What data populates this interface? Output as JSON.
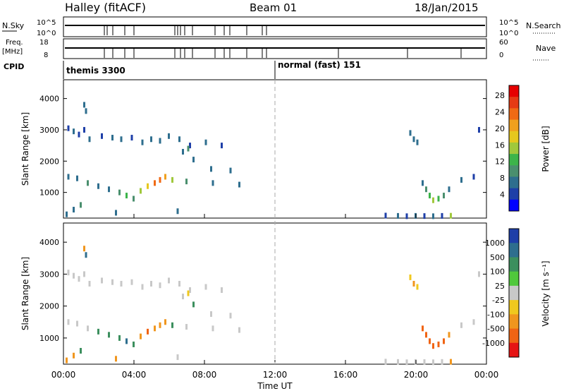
{
  "header": {
    "station": "Halley (fitACF)",
    "beam": "Beam 01",
    "date": "18/Jan/2015"
  },
  "summary_panels": {
    "nsky_label": "N.Sky",
    "nsky_ticks": [
      "10^5",
      "10^0"
    ],
    "nsearch_label": "N.Search",
    "nsearch_ticks": [
      "10^5",
      "10^0"
    ],
    "freq_label": "Freq.",
    "freq_unit": "[MHz]",
    "freq_ticks": [
      "18",
      "8"
    ],
    "nave_label": "Nave",
    "nave_ticks": [
      "60",
      "0"
    ],
    "cpid_label": "CPID",
    "cpid_segments": [
      {
        "name": "themis 3300",
        "start_hour": 0,
        "end_hour": 12
      },
      {
        "name": "normal (fast) 151",
        "start_hour": 12,
        "end_hour": 24
      }
    ]
  },
  "chart_data": [
    {
      "type": "scatter",
      "title": "",
      "xlabel": "Time UT",
      "ylabel": "Slant Range [km]",
      "x_ticks": [
        "00:00",
        "04:00",
        "08:00",
        "12:00",
        "16:00",
        "20:00",
        "00:00"
      ],
      "x_range_hours": [
        0,
        24
      ],
      "y_ticks": [
        1000,
        2000,
        3000,
        4000
      ],
      "ylim": [
        180,
        4600
      ],
      "colorbar": {
        "label": "Power [dB]",
        "ticks": [
          "4",
          "8",
          "12",
          "16",
          "20",
          "24",
          "28"
        ],
        "colors": [
          "#0000ff",
          "#1e3fa8",
          "#2e6e8e",
          "#4a8f6e",
          "#3cb44a",
          "#a0c83c",
          "#e6c81e",
          "#f0a01e",
          "#f06a14",
          "#e63a14",
          "#e60000"
        ]
      },
      "series": [
        {
          "values": [
            [
              0.3,
              3050,
              5
            ],
            [
              0.6,
              2950,
              6
            ],
            [
              0.9,
              2850,
              5
            ],
            [
              1.2,
              3000,
              4
            ],
            [
              1.5,
              2700,
              6
            ],
            [
              2.2,
              2800,
              5
            ],
            [
              2.8,
              2750,
              7
            ],
            [
              3.3,
              2700,
              6
            ],
            [
              3.9,
              2750,
              5
            ],
            [
              4.5,
              2600,
              6
            ],
            [
              5.0,
              2700,
              7
            ],
            [
              5.5,
              2650,
              6
            ],
            [
              6.0,
              2800,
              8
            ],
            [
              6.6,
              2700,
              6
            ],
            [
              7.2,
              2500,
              5
            ],
            [
              8.1,
              2600,
              6
            ],
            [
              9.0,
              2500,
              5
            ]
          ]
        },
        {
          "values": [
            [
              0.3,
              1500,
              6
            ],
            [
              0.8,
              1450,
              8
            ],
            [
              1.4,
              1300,
              9
            ],
            [
              2.0,
              1200,
              7
            ],
            [
              2.6,
              1100,
              8
            ],
            [
              3.2,
              1000,
              10
            ],
            [
              3.6,
              900,
              12
            ],
            [
              4.0,
              800,
              11
            ],
            [
              4.4,
              1050,
              14
            ],
            [
              4.8,
              1200,
              18
            ],
            [
              5.2,
              1300,
              22
            ],
            [
              5.5,
              1400,
              24
            ],
            [
              5.8,
              1500,
              20
            ],
            [
              6.2,
              1400,
              14
            ],
            [
              7.0,
              1350,
              9
            ],
            [
              8.5,
              1300,
              7
            ],
            [
              10.0,
              1250,
              6
            ]
          ]
        },
        {
          "values": [
            [
              1.2,
              3800,
              6
            ],
            [
              1.3,
              3600,
              7
            ],
            [
              6.8,
              2300,
              8
            ],
            [
              7.1,
              2400,
              10
            ],
            [
              7.4,
              2050,
              7
            ],
            [
              8.4,
              1750,
              6
            ],
            [
              9.5,
              1700,
              6
            ]
          ]
        },
        {
          "values": [
            [
              19.7,
              2900,
              6
            ],
            [
              19.9,
              2700,
              7
            ],
            [
              20.1,
              2600,
              6
            ],
            [
              20.4,
              1300,
              7
            ],
            [
              20.6,
              1100,
              10
            ],
            [
              20.8,
              900,
              13
            ],
            [
              21.0,
              750,
              14
            ],
            [
              21.3,
              800,
              12
            ],
            [
              21.6,
              900,
              9
            ],
            [
              21.9,
              1100,
              7
            ],
            [
              22.6,
              1400,
              6
            ],
            [
              23.3,
              1500,
              5
            ],
            [
              23.6,
              3000,
              5
            ]
          ]
        },
        {
          "values": [
            [
              0.2,
              300,
              6
            ],
            [
              0.6,
              450,
              7
            ],
            [
              1.0,
              600,
              9
            ],
            [
              3.0,
              350,
              6
            ],
            [
              6.5,
              400,
              8
            ],
            [
              18.3,
              260,
              5
            ],
            [
              19.0,
              250,
              6
            ],
            [
              19.5,
              240,
              5
            ],
            [
              20.0,
              250,
              6
            ],
            [
              20.5,
              245,
              5
            ],
            [
              21.0,
              240,
              6
            ],
            [
              21.5,
              250,
              5
            ],
            [
              22.0,
              255,
              16
            ]
          ]
        }
      ]
    },
    {
      "type": "scatter",
      "title": "",
      "xlabel": "Time UT",
      "ylabel": "Slant Range [km]",
      "x_ticks": [
        "00:00",
        "04:00",
        "08:00",
        "12:00",
        "16:00",
        "20:00",
        "00:00"
      ],
      "x_range_hours": [
        0,
        24
      ],
      "y_ticks": [
        1000,
        2000,
        3000,
        4000
      ],
      "ylim": [
        180,
        4600
      ],
      "colorbar": {
        "label": "Velocity [m s⁻¹]",
        "ticks": [
          "1000",
          "500",
          "100",
          "25",
          "-25",
          "-100",
          "-500",
          "-1000"
        ],
        "colors": [
          "#1e3fa8",
          "#2e6e8e",
          "#3c8f5e",
          "#50c83c",
          "#c8c8c8",
          "#f0c81e",
          "#f0961e",
          "#f06414",
          "#e61414"
        ]
      },
      "series": [
        {
          "values": [
            [
              0.3,
              3050,
              10
            ],
            [
              0.6,
              2950,
              0
            ],
            [
              0.9,
              2850,
              -10
            ],
            [
              1.2,
              3000,
              5
            ],
            [
              1.5,
              2700,
              0
            ],
            [
              2.2,
              2800,
              -5
            ],
            [
              2.8,
              2750,
              0
            ],
            [
              3.3,
              2700,
              10
            ],
            [
              3.9,
              2750,
              0
            ],
            [
              4.5,
              2600,
              5
            ],
            [
              5.0,
              2700,
              0
            ],
            [
              5.5,
              2650,
              -5
            ],
            [
              6.0,
              2800,
              0
            ],
            [
              6.6,
              2700,
              10
            ],
            [
              7.2,
              2500,
              0
            ],
            [
              8.1,
              2600,
              0
            ],
            [
              9.0,
              2500,
              5
            ]
          ]
        },
        {
          "values": [
            [
              0.3,
              1500,
              0
            ],
            [
              0.8,
              1450,
              5
            ],
            [
              1.4,
              1300,
              -10
            ],
            [
              2.0,
              1200,
              150
            ],
            [
              2.6,
              1100,
              200
            ],
            [
              3.2,
              1000,
              150
            ],
            [
              3.6,
              900,
              300
            ],
            [
              4.0,
              800,
              150
            ],
            [
              4.4,
              1050,
              -300
            ],
            [
              4.8,
              1200,
              -400
            ],
            [
              5.2,
              1300,
              -300
            ],
            [
              5.5,
              1400,
              -200
            ],
            [
              5.8,
              1500,
              -150
            ],
            [
              6.2,
              1400,
              80
            ],
            [
              7.0,
              1350,
              0
            ],
            [
              8.5,
              1300,
              0
            ],
            [
              10.0,
              1250,
              0
            ]
          ]
        },
        {
          "values": [
            [
              1.2,
              3800,
              -200
            ],
            [
              1.3,
              3600,
              300
            ],
            [
              6.8,
              2300,
              0
            ],
            [
              7.1,
              2400,
              -50
            ],
            [
              7.4,
              2050,
              60
            ],
            [
              8.4,
              1750,
              0
            ],
            [
              9.5,
              1700,
              0
            ]
          ]
        },
        {
          "values": [
            [
              19.7,
              2900,
              -50
            ],
            [
              19.9,
              2700,
              -80
            ],
            [
              20.1,
              2600,
              -40
            ],
            [
              20.4,
              1300,
              -400
            ],
            [
              20.6,
              1100,
              -500
            ],
            [
              20.8,
              900,
              -450
            ],
            [
              21.0,
              750,
              -500
            ],
            [
              21.3,
              800,
              -400
            ],
            [
              21.6,
              900,
              -450
            ],
            [
              21.9,
              1100,
              -300
            ],
            [
              22.6,
              1400,
              0
            ],
            [
              23.3,
              1500,
              0
            ],
            [
              23.6,
              3000,
              0
            ]
          ]
        },
        {
          "values": [
            [
              0.2,
              300,
              -300
            ],
            [
              0.6,
              450,
              -200
            ],
            [
              1.0,
              600,
              150
            ],
            [
              3.0,
              350,
              -200
            ],
            [
              6.5,
              400,
              0
            ],
            [
              18.3,
              260,
              0
            ],
            [
              19.0,
              250,
              0
            ],
            [
              19.5,
              240,
              0
            ],
            [
              20.0,
              250,
              0
            ],
            [
              20.5,
              245,
              0
            ],
            [
              21.0,
              240,
              0
            ],
            [
              21.5,
              250,
              0
            ],
            [
              22.0,
              255,
              -150
            ]
          ]
        }
      ]
    }
  ]
}
